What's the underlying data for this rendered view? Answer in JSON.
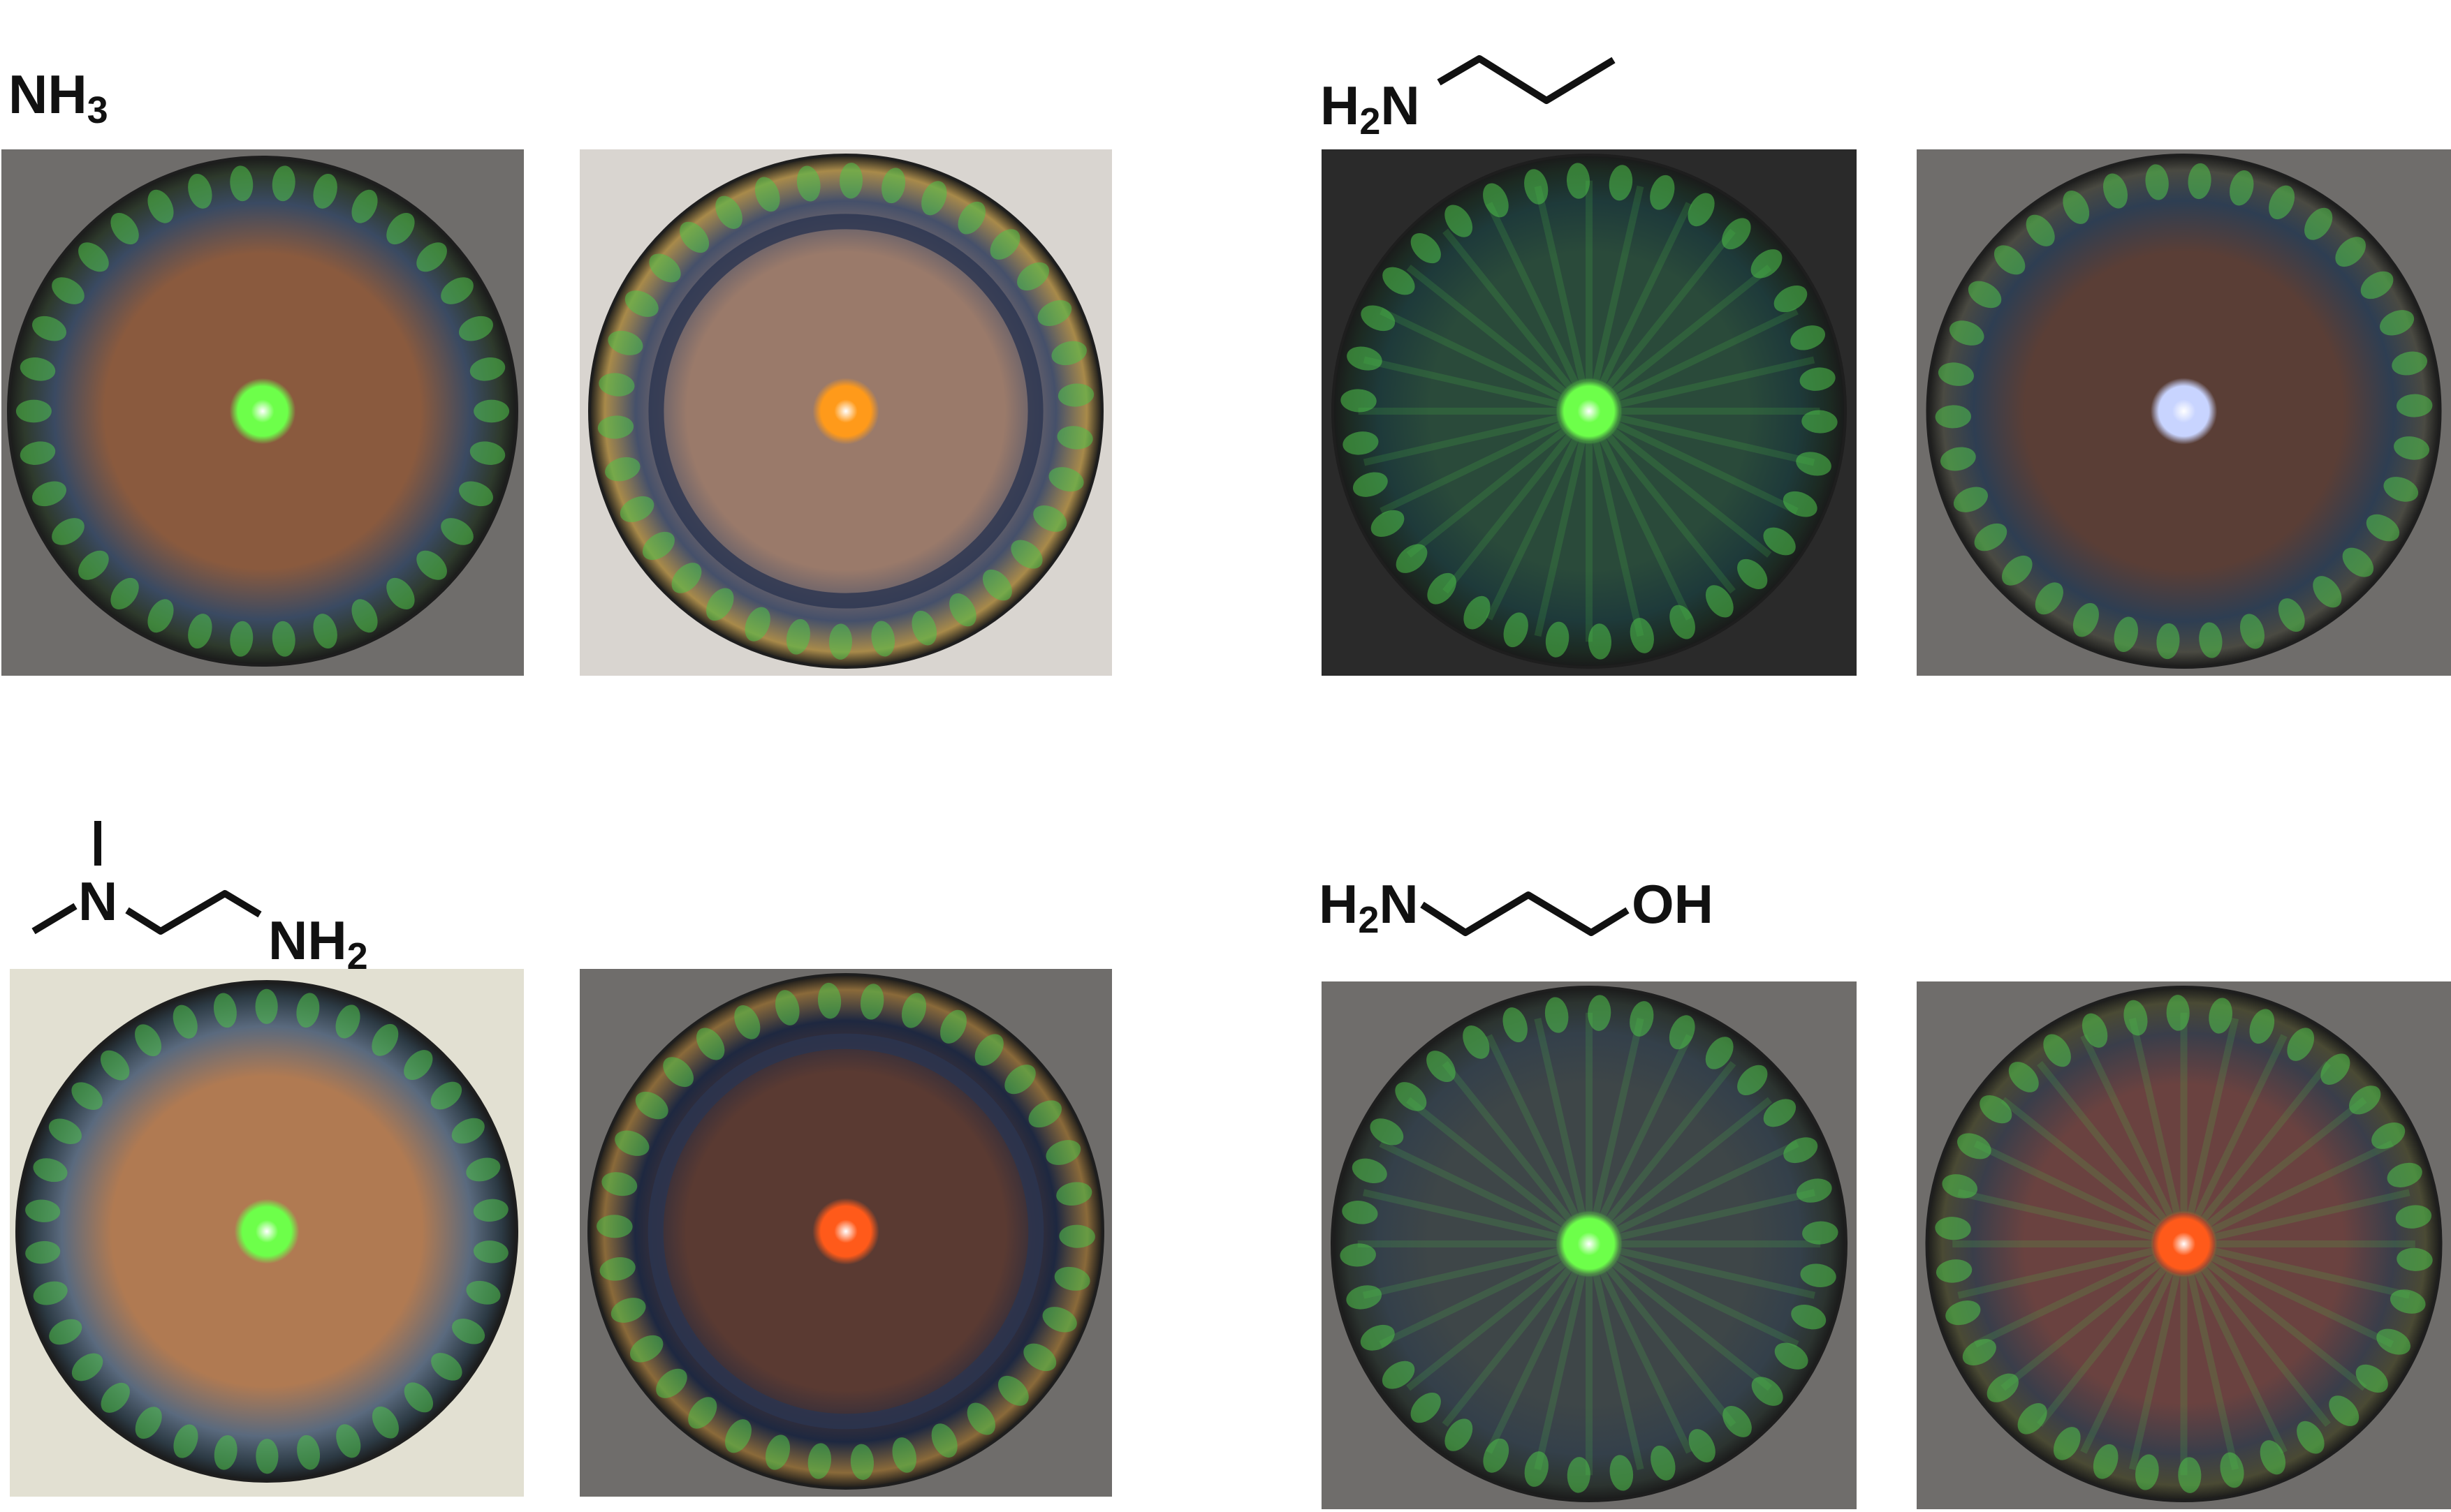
{
  "figure": {
    "colors": {
      "frame_gray": "#6f6d6b",
      "frame_light": "#d9d5d0",
      "frame_dark": "#2a2a2a",
      "frame_beige": "#e2e0d2",
      "rim_green": "#4ec24a",
      "spot_green": "#6dff4a",
      "spot_orange": "#ff9a1a",
      "spot_blue": "#c8d4ff",
      "spot_red": "#ff5a1a"
    },
    "groups": [
      {
        "name": "ammonia",
        "label_parts": [
          "NH",
          "3"
        ],
        "images": [
          {
            "frame": "frame_gray",
            "spot": "spot_green"
          },
          {
            "frame": "frame_light",
            "spot": "spot_orange"
          }
        ]
      },
      {
        "name": "propylamine",
        "label_parts": [
          "H",
          "2",
          "N"
        ],
        "images": [
          {
            "frame": "frame_dark",
            "spot": "spot_green"
          },
          {
            "frame": "frame_gray",
            "spot": "spot_blue"
          }
        ]
      },
      {
        "name": "dimethylethylenediamine",
        "label_n": "N",
        "label_parts": [
          "NH",
          "2"
        ],
        "images": [
          {
            "frame": "frame_beige",
            "spot": "spot_green"
          },
          {
            "frame": "frame_gray",
            "spot": "spot_red"
          }
        ]
      },
      {
        "name": "propanolamine",
        "label_parts": [
          "H",
          "2",
          "N"
        ],
        "label_oh": "OH",
        "images": [
          {
            "frame": "frame_gray",
            "spot": "spot_green"
          },
          {
            "frame": "frame_gray",
            "spot": "spot_red"
          }
        ]
      }
    ]
  }
}
